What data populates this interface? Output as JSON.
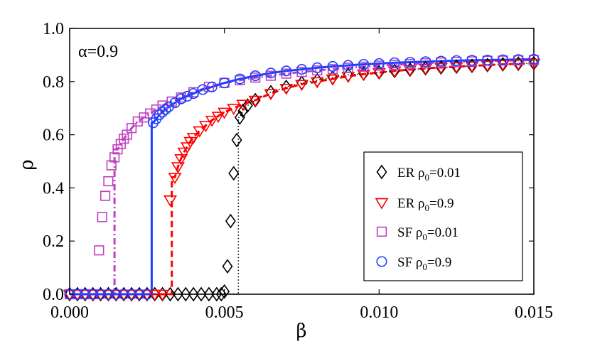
{
  "chart_data": {
    "type": "scatter",
    "title": "",
    "xlabel": "β",
    "ylabel": "ρ",
    "xlim": [
      0.0,
      0.015
    ],
    "ylim": [
      0.0,
      1.0
    ],
    "xticks": [
      0.0,
      0.005,
      0.01,
      0.015
    ],
    "xtick_labels": [
      "0.000",
      "0.005",
      "0.010",
      "0.015"
    ],
    "yticks": [
      0.0,
      0.2,
      0.4,
      0.6,
      0.8,
      1.0
    ],
    "ytick_labels": [
      "0.0",
      "0.2",
      "0.4",
      "0.6",
      "0.8",
      "1.0"
    ],
    "annotation": "α=0.9",
    "legend_position": "lower-right",
    "series": [
      {
        "name": "ER ρ0=0.01",
        "label_main": "ER  ρ",
        "label_sub": "0",
        "label_tail": "=0.01",
        "marker": "diamond",
        "color": "#000000",
        "line_style": "dotted",
        "threshold": 0.00545,
        "x": [
          0.0,
          0.00025,
          0.0005,
          0.00075,
          0.001,
          0.00125,
          0.0015,
          0.00175,
          0.002,
          0.00225,
          0.0025,
          0.00275,
          0.003,
          0.00325,
          0.0035,
          0.00375,
          0.004,
          0.00425,
          0.0045,
          0.00475,
          0.0049,
          0.005,
          0.0051,
          0.0052,
          0.0053,
          0.0054,
          0.0055,
          0.0056,
          0.00575,
          0.006,
          0.0065,
          0.007,
          0.0075,
          0.008,
          0.0085,
          0.009,
          0.0095,
          0.01,
          0.0105,
          0.011,
          0.0115,
          0.012,
          0.0125,
          0.013,
          0.0135,
          0.014,
          0.0145,
          0.015
        ],
        "y": [
          0.0,
          0.0,
          0.0,
          0.0,
          0.0,
          0.0,
          0.0,
          0.0,
          0.0,
          0.0,
          0.0,
          0.0,
          0.0,
          0.0,
          0.0,
          0.0,
          0.0,
          0.0,
          0.0,
          0.0,
          0.0,
          0.01,
          0.105,
          0.275,
          0.455,
          0.58,
          0.665,
          0.69,
          0.71,
          0.73,
          0.76,
          0.78,
          0.795,
          0.805,
          0.815,
          0.825,
          0.83,
          0.835,
          0.84,
          0.845,
          0.85,
          0.853,
          0.856,
          0.859,
          0.862,
          0.865,
          0.867,
          0.869
        ]
      },
      {
        "name": "ER ρ0=0.9",
        "label_main": "ER ρ",
        "label_sub": "0",
        "label_tail": "=0.9",
        "marker": "triangle-down",
        "color": "#ff0000",
        "line_style": "dashed",
        "threshold": 0.0033,
        "x": [
          0.0,
          0.00025,
          0.0005,
          0.00075,
          0.001,
          0.00125,
          0.0015,
          0.00175,
          0.002,
          0.00225,
          0.0025,
          0.00275,
          0.003,
          0.00325,
          0.0034,
          0.0035,
          0.0036,
          0.0037,
          0.0038,
          0.0039,
          0.004,
          0.0042,
          0.0044,
          0.0046,
          0.0048,
          0.005,
          0.0053,
          0.0056,
          0.006,
          0.0065,
          0.007,
          0.0075,
          0.008,
          0.0085,
          0.009,
          0.0095,
          0.01,
          0.0105,
          0.011,
          0.0115,
          0.012,
          0.0125,
          0.013,
          0.0135,
          0.014,
          0.0145,
          0.015
        ],
        "y": [
          0.0,
          0.0,
          0.0,
          0.0,
          0.0,
          0.0,
          0.0,
          0.0,
          0.0,
          0.0,
          0.0,
          0.0,
          0.0,
          0.355,
          0.44,
          0.48,
          0.51,
          0.535,
          0.555,
          0.575,
          0.59,
          0.615,
          0.635,
          0.655,
          0.67,
          0.685,
          0.7,
          0.715,
          0.73,
          0.755,
          0.775,
          0.79,
          0.8,
          0.81,
          0.82,
          0.828,
          0.834,
          0.84,
          0.845,
          0.85,
          0.853,
          0.856,
          0.859,
          0.862,
          0.865,
          0.867,
          0.869
        ]
      },
      {
        "name": "SF ρ0=0.01",
        "label_main": "SF ρ",
        "label_sub": "0",
        "label_tail": "=0.01",
        "marker": "square",
        "color": "#bf40bf",
        "line_style": "dash-dot",
        "threshold": 0.00145,
        "x": [
          0.0,
          0.00025,
          0.0005,
          0.00075,
          0.00095,
          0.00105,
          0.00115,
          0.00125,
          0.00135,
          0.00145,
          0.00155,
          0.00165,
          0.00175,
          0.00185,
          0.002,
          0.0022,
          0.0024,
          0.0026,
          0.0028,
          0.003,
          0.0033,
          0.0036,
          0.004,
          0.0045,
          0.005,
          0.0055,
          0.006,
          0.0065,
          0.007,
          0.0075,
          0.008,
          0.0085,
          0.009,
          0.0095,
          0.01,
          0.0105,
          0.011,
          0.0115,
          0.012,
          0.0125,
          0.013,
          0.0135,
          0.014,
          0.0145,
          0.015
        ],
        "y": [
          0.0,
          0.0,
          0.0,
          0.0,
          0.165,
          0.29,
          0.37,
          0.425,
          0.485,
          0.515,
          0.545,
          0.565,
          0.585,
          0.6,
          0.625,
          0.65,
          0.665,
          0.68,
          0.695,
          0.71,
          0.725,
          0.74,
          0.76,
          0.78,
          0.795,
          0.805,
          0.815,
          0.822,
          0.83,
          0.836,
          0.842,
          0.847,
          0.852,
          0.856,
          0.86,
          0.863,
          0.866,
          0.869,
          0.872,
          0.874,
          0.876,
          0.878,
          0.879,
          0.88,
          0.881
        ]
      },
      {
        "name": "SF ρ0=0.9",
        "label_main": "SF ρ",
        "label_sub": "0",
        "label_tail": "=0.9",
        "marker": "circle",
        "color": "#1f3fff",
        "line_style": "solid",
        "threshold": 0.00265,
        "x": [
          0.0,
          0.00025,
          0.0005,
          0.00075,
          0.001,
          0.00125,
          0.0015,
          0.00175,
          0.002,
          0.00225,
          0.0025,
          0.0027,
          0.0028,
          0.0029,
          0.003,
          0.0031,
          0.0032,
          0.0034,
          0.0036,
          0.0038,
          0.004,
          0.0043,
          0.0046,
          0.005,
          0.0055,
          0.006,
          0.0065,
          0.007,
          0.0075,
          0.008,
          0.0085,
          0.009,
          0.0095,
          0.01,
          0.0105,
          0.011,
          0.0115,
          0.012,
          0.0125,
          0.013,
          0.0135,
          0.014,
          0.0145,
          0.015
        ],
        "y": [
          0.0,
          0.0,
          0.0,
          0.0,
          0.0,
          0.0,
          0.0,
          0.0,
          0.0,
          0.0,
          0.0,
          0.645,
          0.66,
          0.675,
          0.685,
          0.695,
          0.705,
          0.72,
          0.735,
          0.745,
          0.755,
          0.77,
          0.78,
          0.795,
          0.81,
          0.822,
          0.832,
          0.84,
          0.846,
          0.852,
          0.857,
          0.861,
          0.865,
          0.868,
          0.871,
          0.873,
          0.875,
          0.877,
          0.879,
          0.88,
          0.881,
          0.882,
          0.883,
          0.884
        ]
      }
    ]
  }
}
